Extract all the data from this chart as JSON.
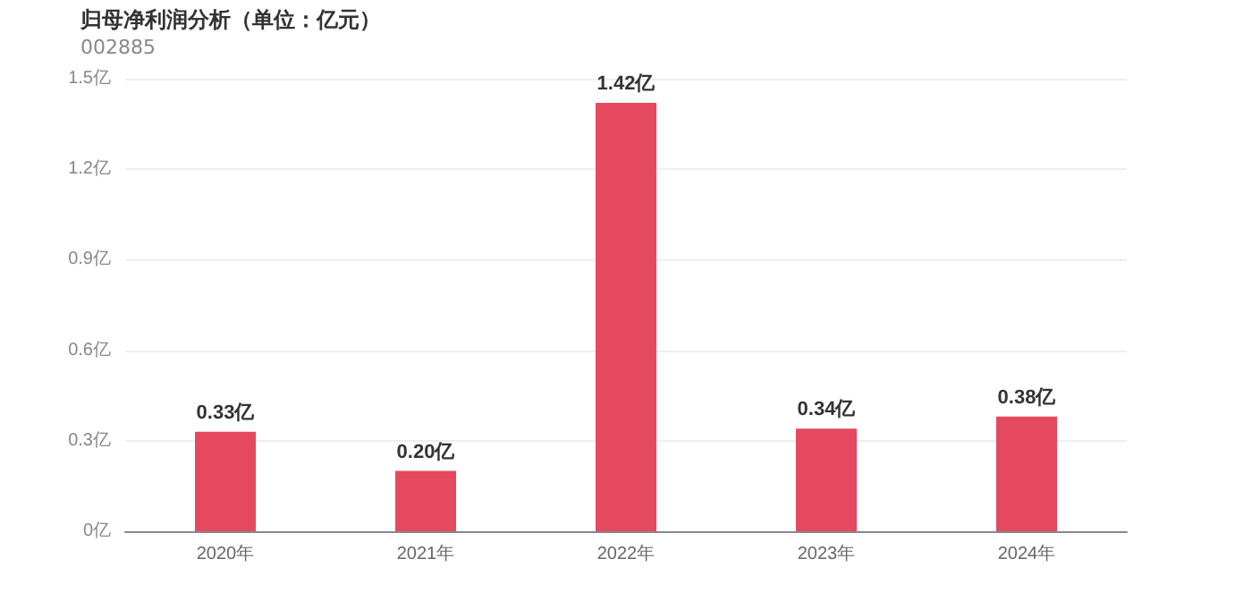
{
  "chart_data": {
    "type": "bar",
    "title": "归母净利润分析（单位：亿元）",
    "subtitle": "002885",
    "categories": [
      "2020年",
      "2021年",
      "2022年",
      "2023年",
      "2024年"
    ],
    "values": [
      0.33,
      0.2,
      1.42,
      0.34,
      0.38
    ],
    "value_labels": [
      "0.33亿",
      "0.20亿",
      "1.42亿",
      "0.34亿",
      "0.38亿"
    ],
    "color": "#e5495f",
    "ylim": [
      0,
      1.5
    ],
    "yticks": [
      {
        "value": 0,
        "label": "0亿"
      },
      {
        "value": 0.3,
        "label": "0.3亿"
      },
      {
        "value": 0.6,
        "label": "0.6亿"
      },
      {
        "value": 0.9,
        "label": "0.9亿"
      },
      {
        "value": 1.2,
        "label": "1.2亿"
      },
      {
        "value": 1.5,
        "label": "1.5亿"
      }
    ],
    "grid": "y"
  }
}
